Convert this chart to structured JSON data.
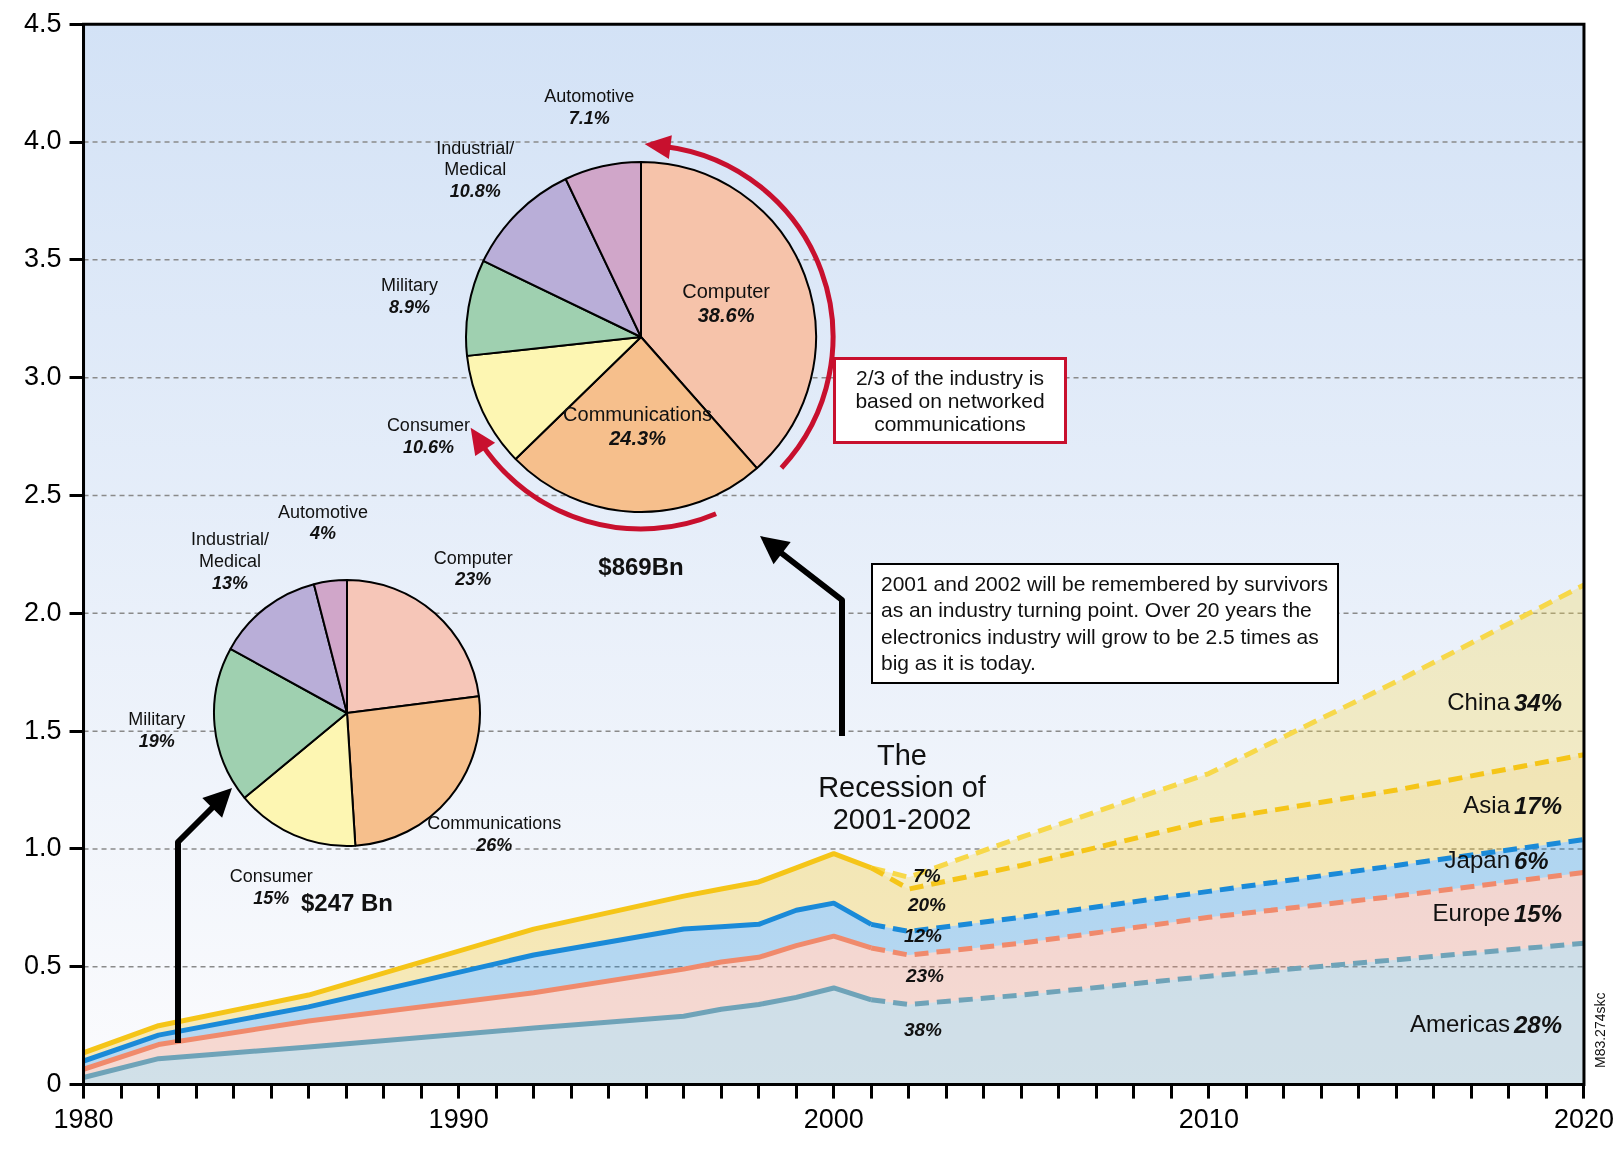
{
  "chart_data": [
    {
      "type": "area",
      "stacked": true,
      "xlim": [
        1980,
        2020
      ],
      "ylim": [
        0,
        4.5
      ],
      "grid": "y",
      "legend": false,
      "marker": "none",
      "x": [
        1980,
        1982,
        1986,
        1992,
        1996,
        1997,
        1998,
        1999,
        2000,
        2001,
        2002,
        2005,
        2010,
        2015,
        2020
      ],
      "xticks": [
        1980,
        {
          "value": 1981,
          "label": null
        },
        {
          "value": 1982,
          "label": null
        },
        {
          "value": 1983,
          "label": null
        },
        {
          "value": 1984,
          "label": null
        },
        {
          "value": 1985,
          "label": null
        },
        {
          "value": 1986,
          "label": null
        },
        {
          "value": 1987,
          "label": null
        },
        {
          "value": 1988,
          "label": null
        },
        {
          "value": 1989,
          "label": null
        },
        1990,
        {
          "value": 1991,
          "label": null
        },
        {
          "value": 1992,
          "label": null
        },
        {
          "value": 1993,
          "label": null
        },
        {
          "value": 1994,
          "label": null
        },
        {
          "value": 1995,
          "label": null
        },
        {
          "value": 1996,
          "label": null
        },
        {
          "value": 1997,
          "label": null
        },
        {
          "value": 1998,
          "label": null
        },
        {
          "value": 1999,
          "label": null
        },
        2000,
        {
          "value": 2001,
          "label": null
        },
        {
          "value": 2002,
          "label": null
        },
        {
          "value": 2003,
          "label": null
        },
        {
          "value": 2004,
          "label": null
        },
        {
          "value": 2005,
          "label": null
        },
        {
          "value": 2006,
          "label": null
        },
        {
          "value": 2007,
          "label": null
        },
        {
          "value": 2008,
          "label": null
        },
        {
          "value": 2009,
          "label": null
        },
        2010,
        {
          "value": 2011,
          "label": null
        },
        {
          "value": 2012,
          "label": null
        },
        {
          "value": 2013,
          "label": null
        },
        {
          "value": 2014,
          "label": null
        },
        {
          "value": 2015,
          "label": null
        },
        {
          "value": 2016,
          "label": null
        },
        {
          "value": 2017,
          "label": null
        },
        {
          "value": 2018,
          "label": null
        },
        {
          "value": 2019,
          "label": null
        },
        2020
      ],
      "yticks": [
        0,
        {
          "value": 0.5,
          "label": "0.5"
        },
        {
          "value": 1,
          "label": "1.0"
        },
        {
          "value": 1.5,
          "label": "1.5"
        },
        {
          "value": 2,
          "label": "2.0"
        },
        {
          "value": 2.5,
          "label": "2.5"
        },
        {
          "value": 3,
          "label": "3.0"
        },
        {
          "value": 3.5,
          "label": "3.5"
        },
        {
          "value": 4,
          "label": "4.0"
        },
        {
          "value": 4.5,
          "label": "4.5"
        }
      ],
      "annotations": [
        "The Recession of 2001-2002",
        "2001 and 2002 will be remembered by survivors as an industry turning point. Over 20 years the electronics industry will grow to be 2.5  times as big as it is today.",
        "M83.274skc",
        "38%",
        "23%",
        "12%",
        "20%",
        "7%",
        "28%",
        "15%",
        "6%",
        "17%",
        "34%"
      ],
      "series": [
        {
          "name": "Americas",
          "color": "#6fa3b8",
          "line_style": "solid",
          "values": [
            0.03,
            0.11,
            0.16,
            0.24,
            0.29,
            0.32,
            0.34,
            0.37,
            0.41,
            0.36,
            0.34,
            0.38,
            0.46,
            0.53,
            0.6
          ]
        },
        {
          "name": "Europe",
          "color": "#f08a6c",
          "line_style": "solid",
          "values": [
            0.035,
            0.06,
            0.11,
            0.15,
            0.2,
            0.2,
            0.2,
            0.22,
            0.22,
            0.22,
            0.21,
            0.22,
            0.25,
            0.27,
            0.3
          ]
        },
        {
          "name": "Japan",
          "color": "#1a8ad8",
          "line_style": "solid",
          "values": [
            0.035,
            0.04,
            0.06,
            0.16,
            0.17,
            0.15,
            0.14,
            0.15,
            0.14,
            0.1,
            0.1,
            0.11,
            0.11,
            0.13,
            0.14
          ]
        },
        {
          "name": "Asia",
          "color": "#f5c518",
          "line_style": "solid",
          "values": [
            0.035,
            0.04,
            0.05,
            0.11,
            0.14,
            0.16,
            0.18,
            0.18,
            0.21,
            0.24,
            0.18,
            0.22,
            0.3,
            0.32,
            0.36
          ]
        },
        {
          "name": "China",
          "color": "#f7d84a",
          "line_style": "dashed",
          "values": [
            null,
            null,
            null,
            null,
            null,
            null,
            null,
            null,
            null,
            0,
            0.05,
            0.12,
            0.2,
            0.46,
            0.72
          ]
        }
      ]
    },
    {
      "type": "pie",
      "title": "$869Bn",
      "categories": [
        "Computer",
        "Communications",
        "Consumer",
        "Military",
        "Industrial/Medical",
        "Automotive"
      ],
      "values": [
        38.6,
        24.3,
        10.6,
        8.9,
        10.8,
        7.1
      ],
      "value_labels": [
        "38.6%",
        "24.3%",
        "10.6%",
        "8.9%",
        "10.8%",
        "7.1%"
      ],
      "colors": [
        "#f6c3aa",
        "#f6bf8c",
        "#fdf6b2",
        "#9fd0b0",
        "#b9aed8",
        "#d0a6c9"
      ],
      "annotations": [
        "2/3 of the industry is based on networked communications"
      ]
    },
    {
      "type": "pie",
      "title": "$247 Bn",
      "categories": [
        "Computer",
        "Communications",
        "Consumer",
        "Military",
        "Industrial/Medical",
        "Automotive"
      ],
      "values": [
        23,
        26,
        15,
        19,
        13,
        4
      ],
      "value_labels": [
        "23%",
        "26%",
        "15%",
        "19%",
        "13%",
        "4%"
      ],
      "colors": [
        "#f6c6b8",
        "#f6bf8c",
        "#fdf6b2",
        "#9fd0b0",
        "#b9aed8",
        "#d0a6c9"
      ]
    }
  ]
}
